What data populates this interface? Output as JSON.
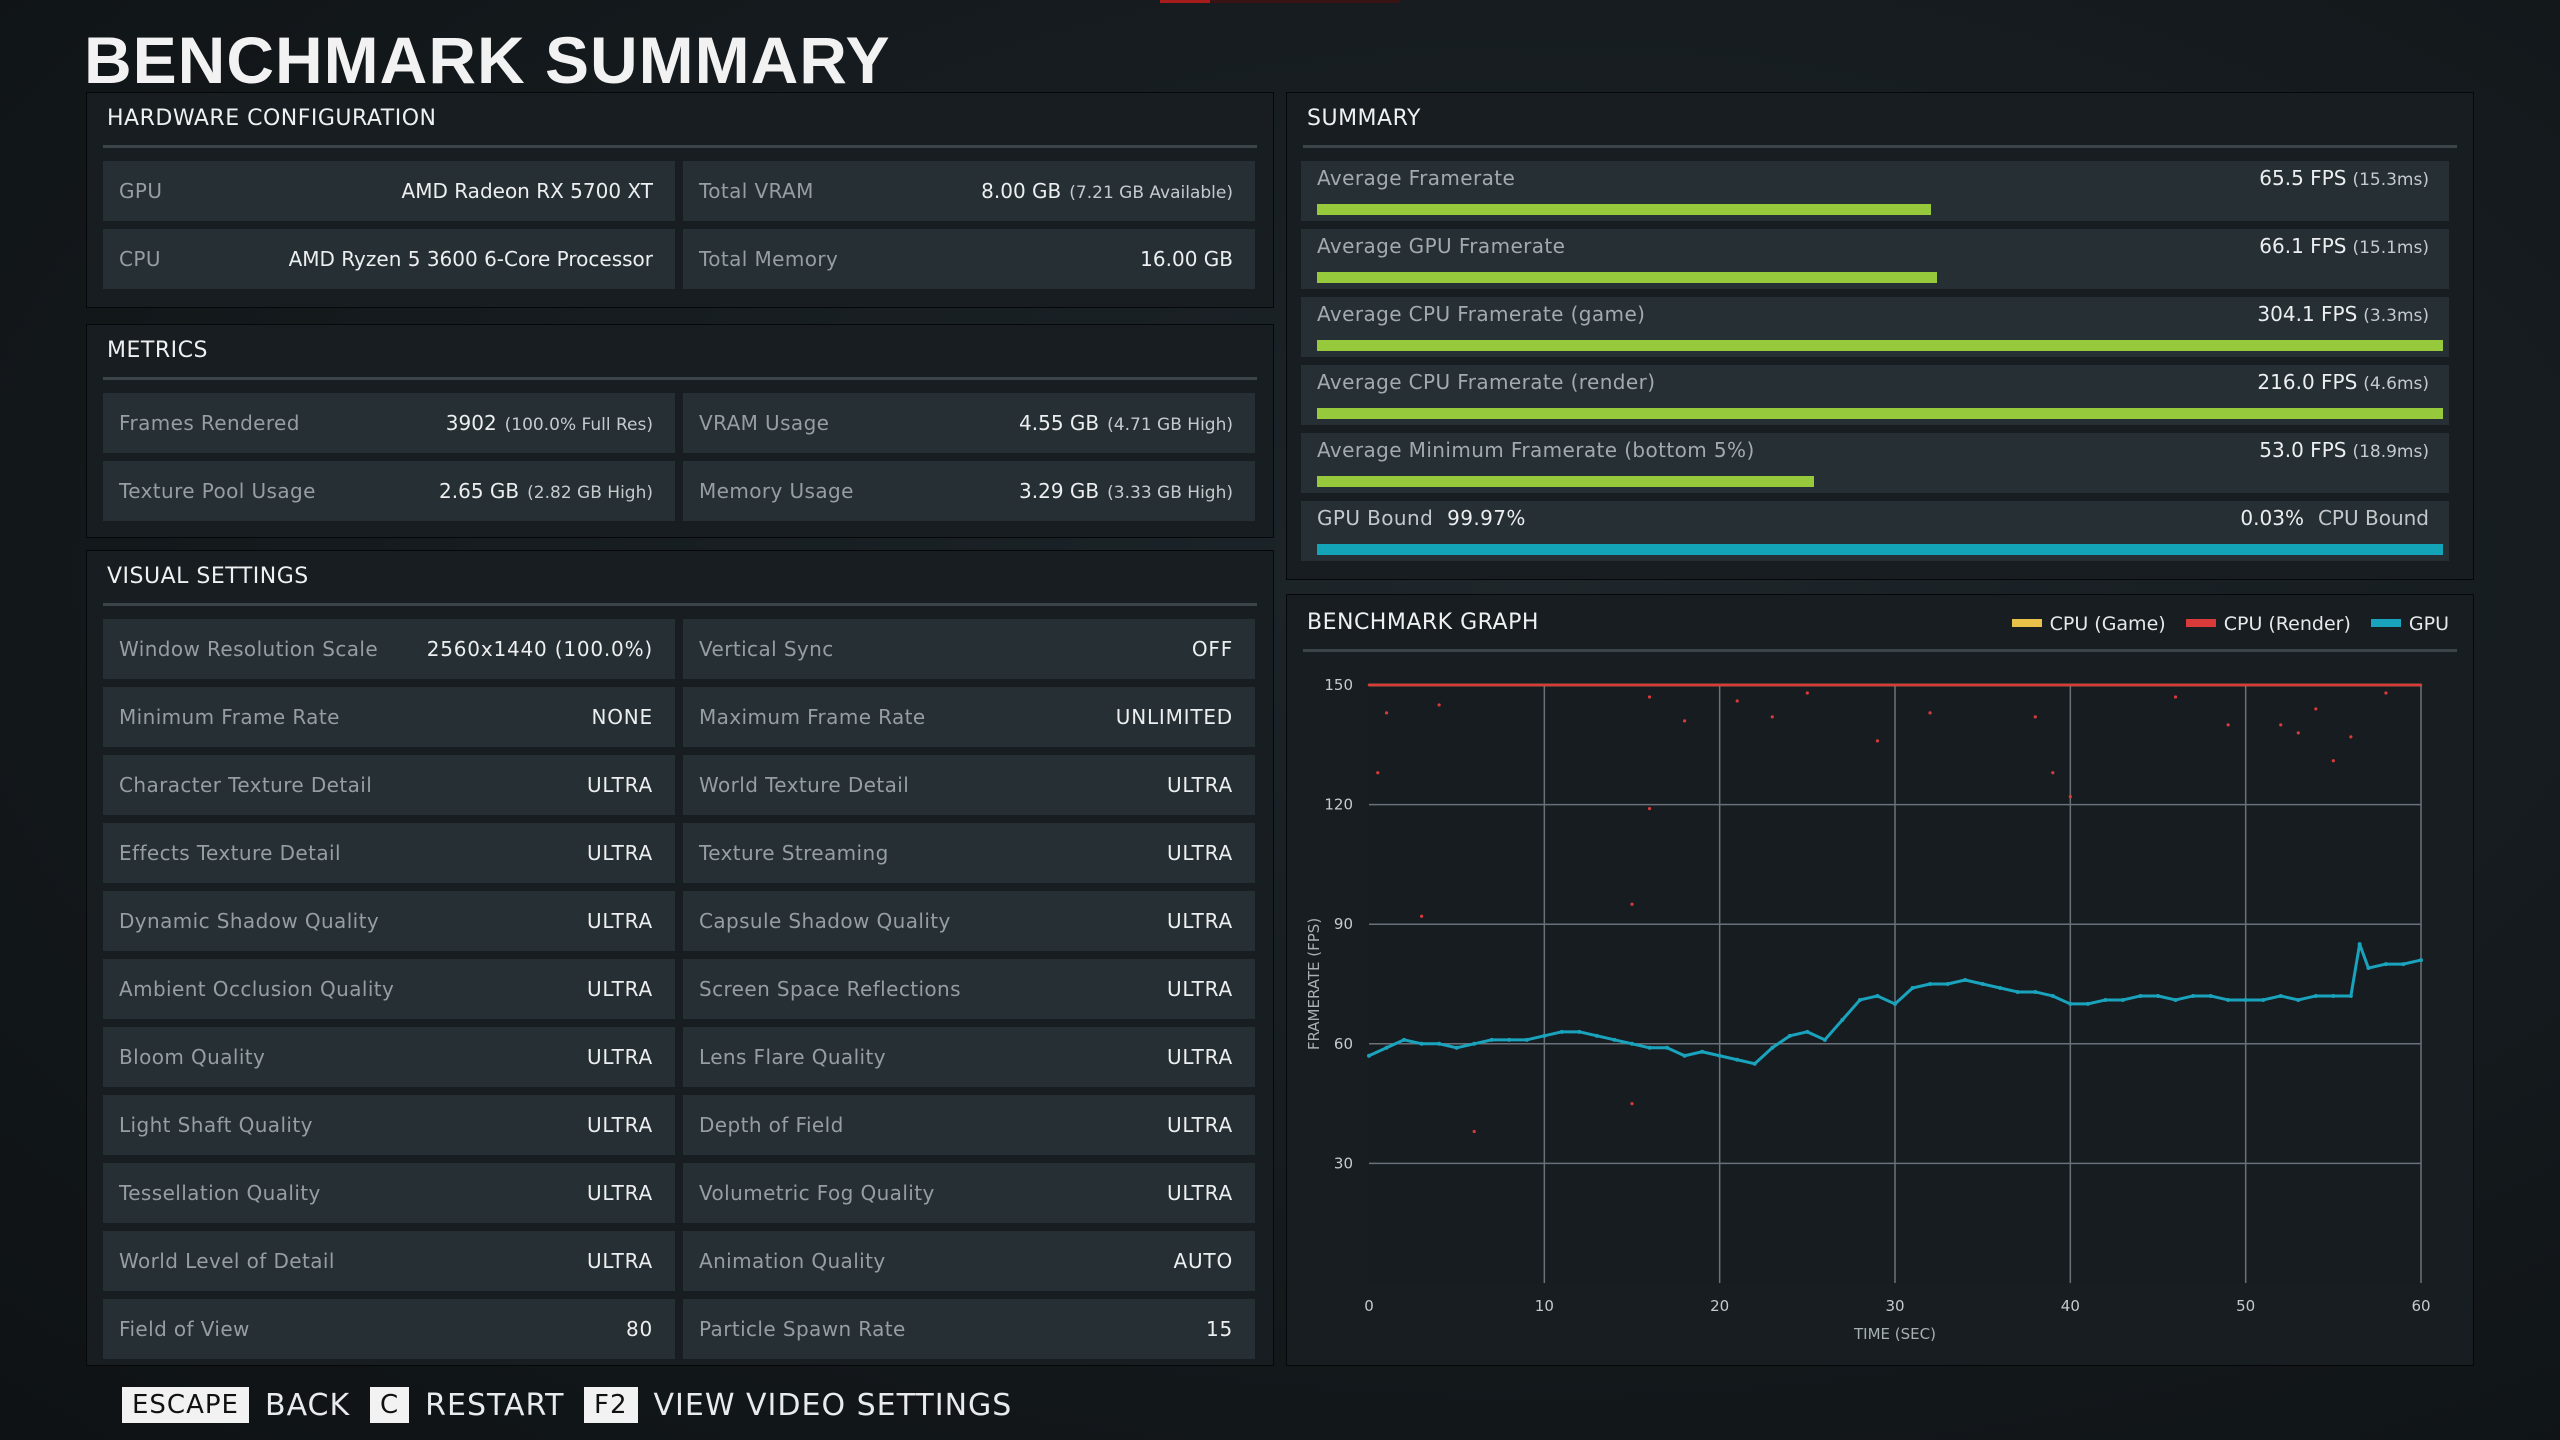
{
  "title": "BENCHMARK SUMMARY",
  "hardware": {
    "heading": "HARDWARE CONFIGURATION",
    "items": [
      {
        "label": "GPU",
        "value": "AMD Radeon RX 5700 XT",
        "sub": ""
      },
      {
        "label": "Total VRAM",
        "value": "8.00 GB",
        "sub": "(7.21 GB Available)"
      },
      {
        "label": "CPU",
        "value": "AMD Ryzen 5 3600 6-Core Processor",
        "sub": ""
      },
      {
        "label": "Total Memory",
        "value": "16.00 GB",
        "sub": ""
      }
    ]
  },
  "metrics": {
    "heading": "METRICS",
    "items": [
      {
        "label": "Frames Rendered",
        "value": "3902",
        "sub": "(100.0% Full Res)"
      },
      {
        "label": "VRAM Usage",
        "value": "4.55 GB",
        "sub": "(4.71 GB High)"
      },
      {
        "label": "Texture Pool Usage",
        "value": "2.65 GB",
        "sub": "(2.82 GB High)"
      },
      {
        "label": "Memory Usage",
        "value": "3.29 GB",
        "sub": "(3.33 GB High)"
      }
    ]
  },
  "visual": {
    "heading": "VISUAL SETTINGS",
    "items": [
      {
        "label": "Window Resolution Scale",
        "value": "2560x1440 (100.0%)"
      },
      {
        "label": "Vertical Sync",
        "value": "OFF"
      },
      {
        "label": "Minimum Frame Rate",
        "value": "NONE"
      },
      {
        "label": "Maximum Frame Rate",
        "value": "UNLIMITED"
      },
      {
        "label": "Character Texture Detail",
        "value": "ULTRA"
      },
      {
        "label": "World Texture Detail",
        "value": "ULTRA"
      },
      {
        "label": "Effects Texture Detail",
        "value": "ULTRA"
      },
      {
        "label": "Texture Streaming",
        "value": "ULTRA"
      },
      {
        "label": "Dynamic Shadow Quality",
        "value": "ULTRA"
      },
      {
        "label": "Capsule Shadow Quality",
        "value": "ULTRA"
      },
      {
        "label": "Ambient Occlusion Quality",
        "value": "ULTRA"
      },
      {
        "label": "Screen Space Reflections",
        "value": "ULTRA"
      },
      {
        "label": "Bloom Quality",
        "value": "ULTRA"
      },
      {
        "label": "Lens Flare Quality",
        "value": "ULTRA"
      },
      {
        "label": "Light Shaft Quality",
        "value": "ULTRA"
      },
      {
        "label": "Depth of Field",
        "value": "ULTRA"
      },
      {
        "label": "Tessellation Quality",
        "value": "ULTRA"
      },
      {
        "label": "Volumetric Fog Quality",
        "value": "ULTRA"
      },
      {
        "label": "World Level of Detail",
        "value": "ULTRA"
      },
      {
        "label": "Animation Quality",
        "value": "AUTO"
      },
      {
        "label": "Field of View",
        "value": "80"
      },
      {
        "label": "Particle Spawn Rate",
        "value": "15"
      }
    ]
  },
  "summary": {
    "heading": "SUMMARY",
    "bar_color": "#97c93c",
    "bound_color": "#14a4b8",
    "rows": [
      {
        "label": "Average Framerate",
        "value": "65.5 FPS",
        "sub": "(15.3ms)",
        "fill": 0.545
      },
      {
        "label": "Average GPU Framerate",
        "value": "66.1 FPS",
        "sub": "(15.1ms)",
        "fill": 0.551
      },
      {
        "label": "Average CPU Framerate (game)",
        "value": "304.1 FPS",
        "sub": "(3.3ms)",
        "fill": 1.0
      },
      {
        "label": "Average CPU Framerate (render)",
        "value": "216.0 FPS",
        "sub": "(4.6ms)",
        "fill": 1.0
      },
      {
        "label": "Average Minimum Framerate (bottom 5%)",
        "value": "53.0 FPS",
        "sub": "(18.9ms)",
        "fill": 0.441
      }
    ],
    "bound": {
      "gpu_label": "GPU Bound",
      "gpu_value": "99.97%",
      "cpu_value": "0.03%",
      "cpu_label": "CPU Bound",
      "gpu_fraction": 0.9997
    }
  },
  "graph": {
    "heading": "BENCHMARK GRAPH",
    "legend": [
      {
        "name": "CPU (Game)",
        "color": "#e8c14a"
      },
      {
        "name": "CPU (Render)",
        "color": "#d93a3a"
      },
      {
        "name": "GPU",
        "color": "#1aa3bd"
      }
    ]
  },
  "chart_data": {
    "type": "scatter",
    "xlabel": "TIME (SEC)",
    "ylabel": "FRAMERATE (FPS)",
    "xlim": [
      0,
      60
    ],
    "ylim": [
      0,
      150
    ],
    "xticks": [
      0,
      10,
      20,
      30,
      40,
      50,
      60
    ],
    "yticks": [
      30,
      60,
      90,
      120,
      150
    ],
    "grid": true,
    "series": [
      {
        "name": "CPU (Game)",
        "color": "#e8c14a",
        "points": [
          [
            0,
            150
          ],
          [
            60,
            150
          ]
        ]
      },
      {
        "name": "CPU (Render)",
        "color": "#d93a3a",
        "points": [
          [
            0,
            150
          ],
          [
            60,
            150
          ]
        ],
        "outliers": [
          [
            1,
            143
          ],
          [
            4,
            145
          ],
          [
            16,
            147
          ],
          [
            16,
            119
          ],
          [
            18,
            141
          ],
          [
            21,
            146
          ],
          [
            23,
            142
          ],
          [
            25,
            148
          ],
          [
            29,
            136
          ],
          [
            32,
            143
          ],
          [
            38,
            142
          ],
          [
            39,
            128
          ],
          [
            40,
            122
          ],
          [
            46,
            147
          ],
          [
            49,
            140
          ],
          [
            52,
            140
          ],
          [
            53,
            138
          ],
          [
            54,
            144
          ],
          [
            55,
            131
          ],
          [
            56,
            137
          ],
          [
            58,
            148
          ],
          [
            0.5,
            128
          ],
          [
            3,
            92
          ],
          [
            15,
            95
          ],
          [
            15,
            45
          ],
          [
            6,
            38
          ]
        ]
      },
      {
        "name": "GPU",
        "color": "#1aa3bd",
        "points": [
          [
            0,
            57
          ],
          [
            1,
            59
          ],
          [
            2,
            61
          ],
          [
            3,
            60
          ],
          [
            4,
            60
          ],
          [
            5,
            59
          ],
          [
            6,
            60
          ],
          [
            7,
            61
          ],
          [
            8,
            61
          ],
          [
            9,
            61
          ],
          [
            10,
            62
          ],
          [
            11,
            63
          ],
          [
            12,
            63
          ],
          [
            13,
            62
          ],
          [
            14,
            61
          ],
          [
            15,
            60
          ],
          [
            16,
            59
          ],
          [
            17,
            59
          ],
          [
            18,
            57
          ],
          [
            19,
            58
          ],
          [
            20,
            57
          ],
          [
            21,
            56
          ],
          [
            22,
            55
          ],
          [
            23,
            59
          ],
          [
            24,
            62
          ],
          [
            25,
            63
          ],
          [
            26,
            61
          ],
          [
            27,
            66
          ],
          [
            28,
            71
          ],
          [
            29,
            72
          ],
          [
            30,
            70
          ],
          [
            31,
            74
          ],
          [
            32,
            75
          ],
          [
            33,
            75
          ],
          [
            34,
            76
          ],
          [
            35,
            75
          ],
          [
            36,
            74
          ],
          [
            37,
            73
          ],
          [
            38,
            73
          ],
          [
            39,
            72
          ],
          [
            40,
            70
          ],
          [
            41,
            70
          ],
          [
            42,
            71
          ],
          [
            43,
            71
          ],
          [
            44,
            72
          ],
          [
            45,
            72
          ],
          [
            46,
            71
          ],
          [
            47,
            72
          ],
          [
            48,
            72
          ],
          [
            49,
            71
          ],
          [
            50,
            71
          ],
          [
            51,
            71
          ],
          [
            52,
            72
          ],
          [
            53,
            71
          ],
          [
            54,
            72
          ],
          [
            55,
            72
          ],
          [
            56,
            72
          ],
          [
            56.5,
            85
          ],
          [
            57,
            79
          ],
          [
            58,
            80
          ],
          [
            59,
            80
          ],
          [
            60,
            81
          ]
        ]
      }
    ]
  },
  "footer": {
    "escape_key": "ESCAPE",
    "back_label": "BACK",
    "c_key": "C",
    "restart_label": "RESTART",
    "f2_key": "F2",
    "video_label": "VIEW VIDEO SETTINGS"
  }
}
